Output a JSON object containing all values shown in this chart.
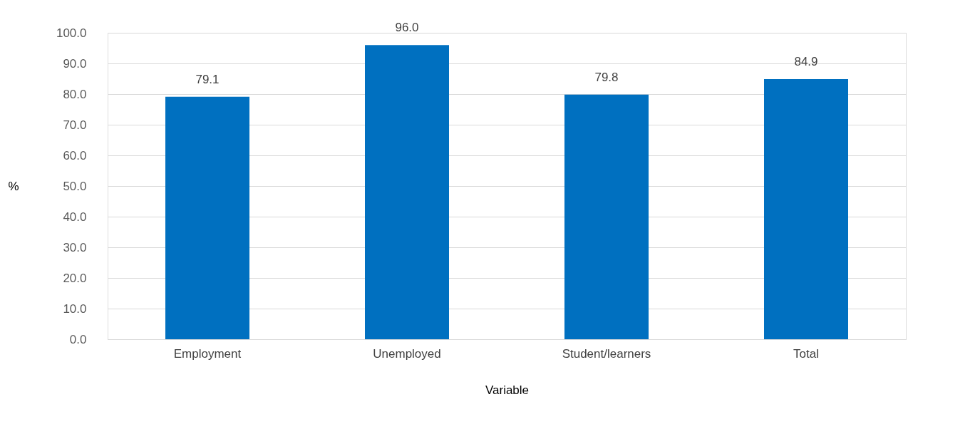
{
  "chart_data": {
    "type": "bar",
    "xlabel": "Variable",
    "ylabel": "%",
    "categories": [
      "Employment",
      "Unemployed",
      "Student/learners",
      "Total"
    ],
    "values": [
      79.1,
      96.0,
      79.8,
      84.9
    ],
    "value_labels": [
      "79.1",
      "96.0",
      "79.8",
      "84.9"
    ],
    "color": "#0070c0",
    "ylim": [
      0,
      100
    ],
    "yticks": [
      {
        "value": 0,
        "label": "0.0"
      },
      {
        "value": 10,
        "label": "10.0"
      },
      {
        "value": 20,
        "label": "20.0"
      },
      {
        "value": 30,
        "label": "30.0"
      },
      {
        "value": 40,
        "label": "40.0"
      },
      {
        "value": 50,
        "label": "50.0"
      },
      {
        "value": 60,
        "label": "60.0"
      },
      {
        "value": 70,
        "label": "70.0"
      },
      {
        "value": 80,
        "label": "80.0"
      },
      {
        "value": 90,
        "label": "90.0"
      },
      {
        "value": 100,
        "label": "100.0"
      }
    ],
    "grid": "y"
  }
}
